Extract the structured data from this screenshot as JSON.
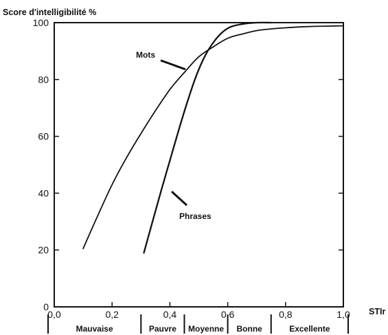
{
  "chart_data": {
    "type": "line",
    "title": "Score d'intelligibilité %",
    "xlabel": "STIr",
    "ylabel": "",
    "xlim": [
      0.0,
      1.0
    ],
    "ylim": [
      0,
      100
    ],
    "x_ticks": [
      0.0,
      0.2,
      0.4,
      0.6,
      0.8,
      1.0
    ],
    "x_tick_labels": [
      "0,0",
      "0,2",
      "0,4",
      "0,6",
      "0,8",
      "1,0"
    ],
    "y_ticks": [
      0,
      20,
      40,
      60,
      80,
      100
    ],
    "y_tick_labels": [
      "0",
      "20",
      "40",
      "60",
      "80",
      "100"
    ],
    "grid": false,
    "series": [
      {
        "name": "Mots",
        "x": [
          0.1,
          0.15,
          0.2,
          0.25,
          0.3,
          0.35,
          0.4,
          0.45,
          0.5,
          0.55,
          0.6,
          0.65,
          0.7,
          0.75,
          0.8,
          0.85,
          0.9,
          0.95,
          1.0
        ],
        "y": [
          20.5,
          32,
          43,
          52.5,
          61,
          69,
          76.5,
          82.5,
          88,
          91.5,
          94.5,
          96,
          97.2,
          97.8,
          98.2,
          98.5,
          98.7,
          98.8,
          98.9
        ]
      },
      {
        "name": "Phrases",
        "x": [
          0.31,
          0.34,
          0.37,
          0.4,
          0.43,
          0.46,
          0.49,
          0.52,
          0.55,
          0.58,
          0.61,
          0.65,
          0.7,
          0.75
        ],
        "y": [
          19,
          30,
          41,
          51.5,
          62,
          72,
          81,
          88,
          93,
          96.5,
          98.5,
          99.5,
          100,
          100
        ]
      }
    ],
    "annotations": [
      "Mots",
      "Phrases"
    ],
    "quality_bands": [
      {
        "label": "Mauvaise",
        "from": 0.0,
        "to": 0.3
      },
      {
        "label": "Pauvre",
        "from": 0.3,
        "to": 0.45
      },
      {
        "label": "Moyenne",
        "from": 0.45,
        "to": 0.6
      },
      {
        "label": "Bonne",
        "from": 0.6,
        "to": 0.75
      },
      {
        "label": "Excellente",
        "from": 0.75,
        "to": 1.0
      }
    ]
  }
}
